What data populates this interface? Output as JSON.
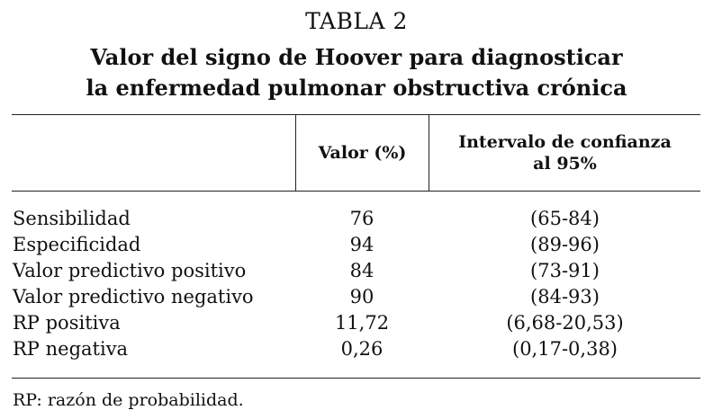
{
  "table": {
    "number": "TABLA 2",
    "title_line1": "Valor del signo de Hoover para diagnosticar",
    "title_line2": "la enfermedad pulmonar obstructiva crónica",
    "columns": {
      "label": "",
      "value": "Valor (%)",
      "ci_line1": "Intervalo de confianza",
      "ci_line2": "al 95%"
    },
    "rows": [
      {
        "label": "Sensibilidad",
        "value": "76",
        "ci": "(65-84)"
      },
      {
        "label": "Especificidad",
        "value": "94",
        "ci": "(89-96)"
      },
      {
        "label": "Valor predictivo positivo",
        "value": "84",
        "ci": "(73-91)"
      },
      {
        "label": "Valor predictivo negativo",
        "value": "90",
        "ci": "(84-93)"
      },
      {
        "label": "RP positiva",
        "value": "11,72",
        "ci": "(6,68-20,53)"
      },
      {
        "label": "RP negativa",
        "value": "0,26",
        "ci": "(0,17-0,38)"
      }
    ],
    "footnote": "RP: razón de probabilidad."
  }
}
